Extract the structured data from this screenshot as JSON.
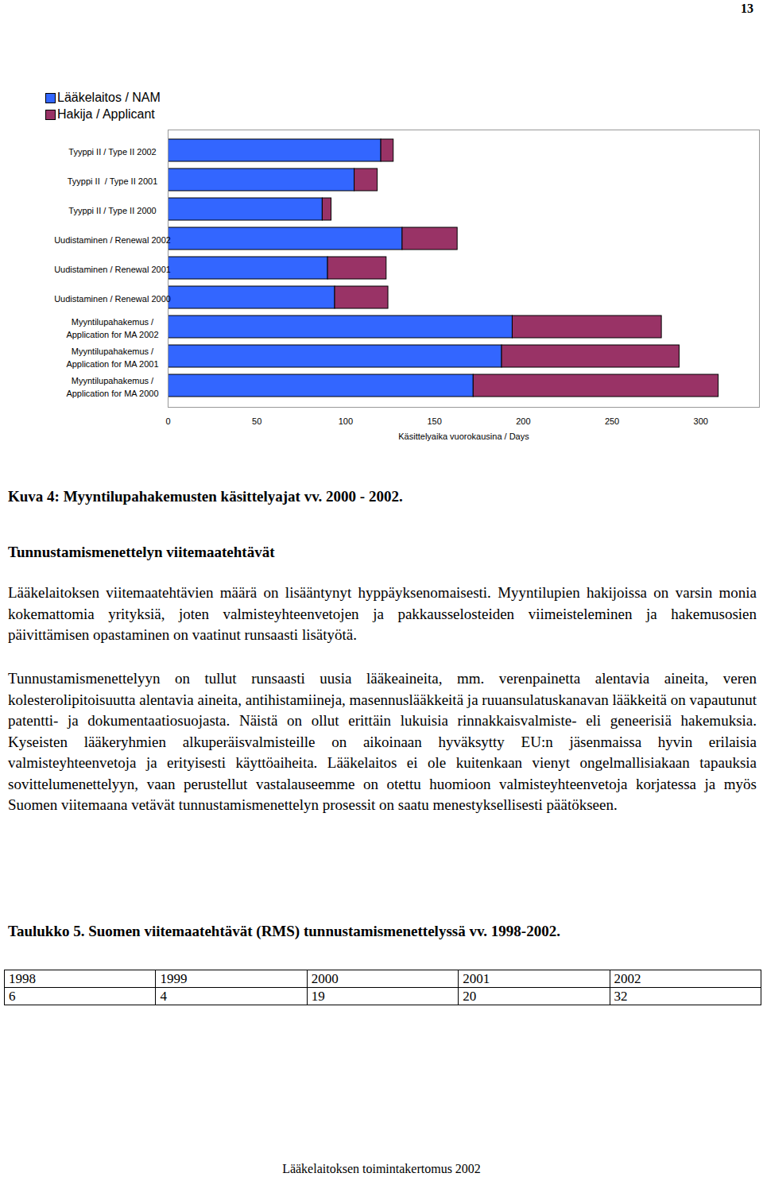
{
  "page_number": "13",
  "chart_data": {
    "type": "bar",
    "orientation": "horizontal",
    "stacked": true,
    "categories": [
      "Tyyppi II / Type II 2002",
      "Tyyppi II  / Type II 2001",
      "Tyyppi II / Type II 2000",
      "Uudistaminen / Renewal 2002",
      "Uudistaminen / Renewal 2001",
      "Uudistaminen / Renewal 2000",
      "Myyntilupahakemus / Application for MA 2002",
      "Myyntilupahakemus / Application for MA 2001",
      "Myyntilupahakemus / Application for MA 2000"
    ],
    "series": [
      {
        "name": "Lääkelaitos / NAM",
        "color": "#3366ff",
        "values": [
          120,
          105,
          87,
          132,
          90,
          94,
          194,
          188,
          172
        ]
      },
      {
        "name": "Hakija / Applicant",
        "color": "#993366",
        "values": [
          7,
          13,
          5,
          31,
          33,
          30,
          84,
          100,
          138
        ]
      }
    ],
    "xlabel": "Käsittelyaika vuorokausina / Days",
    "xlim": [
      0,
      333
    ],
    "xticks": [
      0,
      50,
      100,
      150,
      200,
      250,
      300
    ],
    "legend": "top-left",
    "grid": false
  },
  "figure_caption": "Kuva 4: Myyntilupahakemusten käsittelyajat vv. 2000 - 2002.",
  "heading": "Tunnustamismenettelyn viitemaatehtävät",
  "paragraphs": [
    "Lääkelaitoksen viitemaatehtävien määrä on lisääntynyt hyppäyksenomaisesti. Myyntilupien hakijoissa on varsin monia kokemattomia yrityksiä, joten valmisteyhteenvetojen ja pakkausselosteiden viimeisteleminen ja hakemusosien päivittämisen opastaminen on vaatinut runsaasti lisätyötä.",
    "Tunnustamismenettelyyn on tullut runsaasti uusia lääkeaineita, mm. verenpainetta alentavia aineita, veren kolesterolipitoisuutta alentavia aineita, antihistamiineja, masennuslääkkeitä ja ruuansulatuskanavan lääkkeitä on vapautunut patentti- ja dokumentaatiosuojasta. Näistä on ollut erittäin lukuisia rinnakkaisvalmiste- eli geneerisiä hakemuksia. Kyseisten lääkeryhmien alkuperäisvalmisteille on aikoinaan hyväksytty EU:n jäsenmaissa hyvin erilaisia valmisteyhteenvetoja ja erityisesti käyttöaiheita. Lääkelaitos ei ole kuitenkaan vienyt ongelmallisiakaan tapauksia sovittelumenettelyyn, vaan perustellut vastalauseemme on otettu huomioon valmisteyhteenvetoja korjatessa ja myös Suomen viitemaana vetävät tunnustamismenettelyn prosessit on saatu menestyksellisesti päätökseen."
  ],
  "table_caption": "Taulukko 5. Suomen viitemaatehtävät (RMS) tunnustamismenettelyssä vv. 1998-2002.",
  "table": {
    "rows": [
      [
        1998,
        1999,
        2000,
        2001,
        2002
      ],
      [
        6,
        4,
        19,
        20,
        32
      ]
    ]
  },
  "footer": "Lääkelaitoksen toimintakertomus 2002"
}
